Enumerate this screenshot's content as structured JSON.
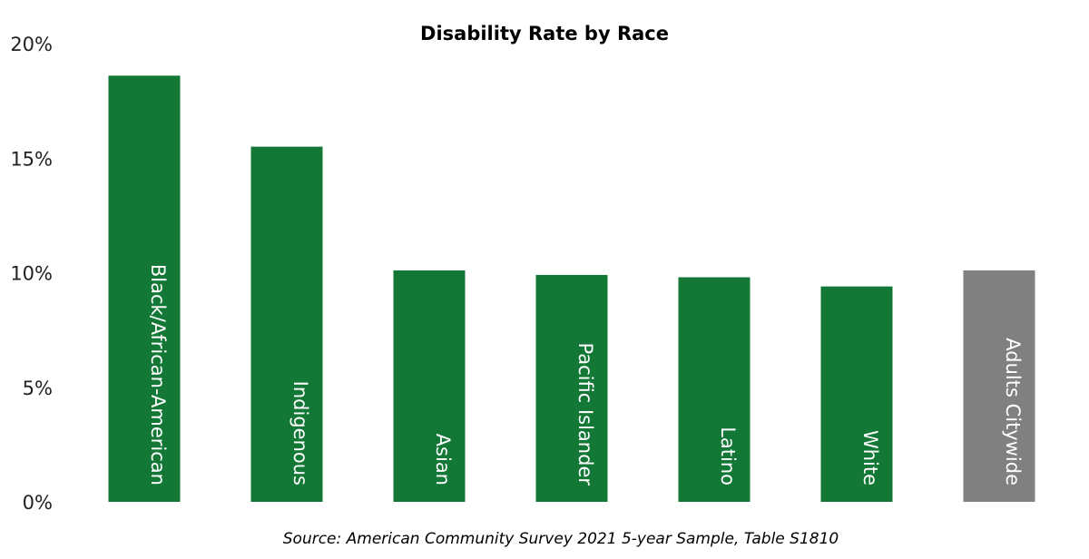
{
  "chart_data": {
    "type": "bar",
    "title": "Disability Rate by Race",
    "source": "Source: American Community Survey 2021 5-year Sample, Table S1810",
    "categories": [
      "Black/African-American",
      "Indigenous",
      "Asian",
      "Pacific Islander",
      "Latino",
      "White",
      "Adults Citywide"
    ],
    "values": [
      18.6,
      15.5,
      10.1,
      9.9,
      9.8,
      9.4,
      10.1
    ],
    "colors": [
      "#137835",
      "#137835",
      "#137835",
      "#137835",
      "#137835",
      "#137835",
      "#808080"
    ],
    "ylim": [
      0,
      20
    ],
    "yticks": [
      0,
      5,
      10,
      15,
      20
    ],
    "ytick_labels": [
      "0%",
      "5%",
      "10%",
      "15%",
      "20%"
    ],
    "xlabel": "",
    "ylabel": "",
    "grid": false,
    "legend": "none",
    "category_labels_position": "inside bars, rotated"
  }
}
